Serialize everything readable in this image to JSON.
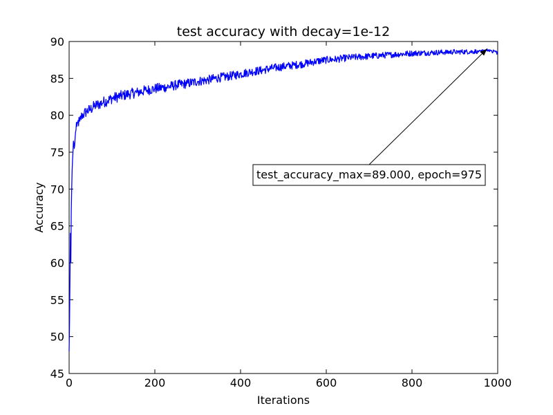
{
  "chart_data": {
    "type": "line",
    "title": "test accuracy with decay=1e-12",
    "xlabel": "Iterations",
    "ylabel": "Accuracy",
    "xlim": [
      0,
      1000
    ],
    "ylim": [
      45,
      90
    ],
    "xticks": [
      0,
      200,
      400,
      600,
      800,
      1000
    ],
    "yticks": [
      45,
      50,
      55,
      60,
      65,
      70,
      75,
      80,
      85,
      90
    ],
    "grid": false,
    "series": [
      {
        "color": "#0000ff",
        "points": [
          [
            0,
            48
          ],
          [
            1,
            52
          ],
          [
            2,
            58
          ],
          [
            3,
            64
          ],
          [
            4,
            60
          ],
          [
            5,
            67
          ],
          [
            6,
            70
          ],
          [
            7,
            72.5
          ],
          [
            8,
            74
          ],
          [
            9,
            75
          ],
          [
            10,
            76.5
          ],
          [
            12,
            75.5
          ],
          [
            14,
            77
          ],
          [
            16,
            78
          ],
          [
            18,
            78.5
          ],
          [
            20,
            79
          ],
          [
            25,
            79.2
          ],
          [
            30,
            80
          ],
          [
            35,
            80.2
          ],
          [
            40,
            80.5
          ],
          [
            50,
            80.8
          ],
          [
            60,
            81.3
          ],
          [
            70,
            81.5
          ],
          [
            80,
            81.8
          ],
          [
            90,
            82
          ],
          [
            100,
            82.3
          ],
          [
            120,
            82.6
          ],
          [
            140,
            82.9
          ],
          [
            160,
            83.1
          ],
          [
            180,
            83.4
          ],
          [
            200,
            83.6
          ],
          [
            225,
            83.8
          ],
          [
            250,
            84.1
          ],
          [
            275,
            84.3
          ],
          [
            300,
            84.6
          ],
          [
            325,
            84.8
          ],
          [
            350,
            85.1
          ],
          [
            375,
            85.3
          ],
          [
            400,
            85.6
          ],
          [
            425,
            85.9
          ],
          [
            450,
            86.1
          ],
          [
            475,
            86.4
          ],
          [
            500,
            86.6
          ],
          [
            525,
            86.8
          ],
          [
            550,
            87.0
          ],
          [
            575,
            87.3
          ],
          [
            600,
            87.5
          ],
          [
            625,
            87.6
          ],
          [
            650,
            87.8
          ],
          [
            675,
            87.9
          ],
          [
            700,
            88.0
          ],
          [
            725,
            88.1
          ],
          [
            750,
            88.2
          ],
          [
            775,
            88.3
          ],
          [
            800,
            88.4
          ],
          [
            825,
            88.45
          ],
          [
            850,
            88.5
          ],
          [
            875,
            88.55
          ],
          [
            900,
            88.6
          ],
          [
            925,
            88.6
          ],
          [
            950,
            88.65
          ],
          [
            975,
            89.0
          ],
          [
            1000,
            88.5
          ]
        ]
      }
    ],
    "annotation": {
      "text": "test_accuracy_max=89.000, epoch=975",
      "point": [
        975,
        89.0
      ],
      "text_anchor": [
        700,
        72
      ]
    }
  }
}
